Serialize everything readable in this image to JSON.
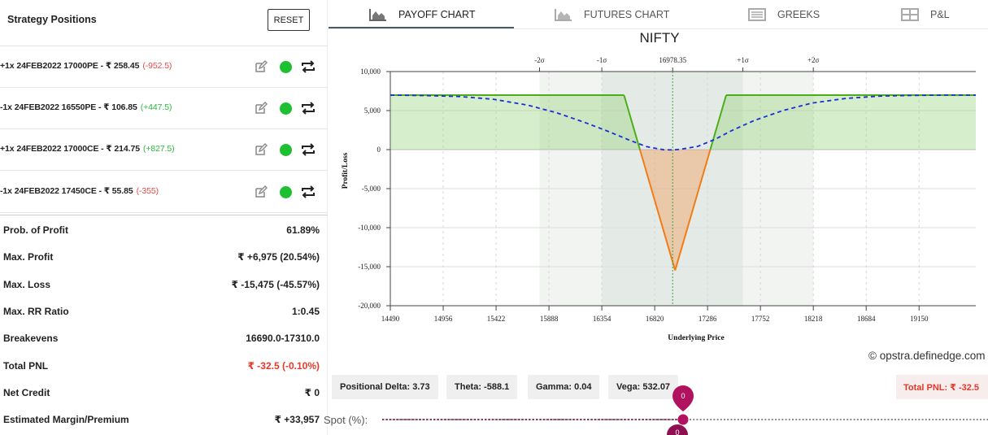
{
  "positions": {
    "title": "Strategy Positions",
    "reset_label": "RESET",
    "legs": [
      {
        "text": "+1x  24FEB2022  17000PE  - ₹ 258.45",
        "change": "(-952.5)",
        "change_class": "neg"
      },
      {
        "text": "-1x  24FEB2022  16550PE  - ₹ 106.85",
        "change": "(+447.5)",
        "change_class": "pos"
      },
      {
        "text": "+1x  24FEB2022  17000CE  - ₹ 214.75",
        "change": "(+827.5)",
        "change_class": "pos"
      },
      {
        "text": "-1x  24FEB2022  17450CE  - ₹ 55.85",
        "change": "(-355)",
        "change_class": "neg"
      }
    ]
  },
  "summary": [
    {
      "label": "Prob. of Profit",
      "value": "61.89%"
    },
    {
      "label": "Max. Profit",
      "value": "₹ +6,975 (20.54%)"
    },
    {
      "label": "Max. Loss",
      "value": "₹ -15,475 (-45.57%)"
    },
    {
      "label": "Max. RR Ratio",
      "value": "1:0.45"
    },
    {
      "label": "Breakevens",
      "value": "16690.0-17310.0"
    },
    {
      "label": "Total PNL",
      "value": "₹ -32.5 (-0.10%)",
      "highlight": true
    },
    {
      "label": "Net Credit",
      "value": "₹ 0"
    },
    {
      "label": "Estimated Margin/Premium",
      "value": "₹ +33,957"
    }
  ],
  "tabs": [
    {
      "label": "PAYOFF CHART",
      "icon": "area-chart-icon",
      "active": true
    },
    {
      "label": "FUTURES CHART",
      "icon": "area-chart-icon",
      "active": false
    },
    {
      "label": "GREEKS",
      "icon": "table-list-icon",
      "active": false
    },
    {
      "label": "P&L",
      "icon": "grid-icon",
      "active": false
    }
  ],
  "chart_data": {
    "type": "line",
    "title": "NIFTY",
    "xlabel": "Underlying Price",
    "ylabel": "Profit/Loss",
    "xlim": [
      14490,
      19650
    ],
    "ylim": [
      -20000,
      10000
    ],
    "x_ticks": [
      14490,
      14956,
      15422,
      15888,
      16354,
      16820,
      17286,
      17752,
      18218,
      18684,
      19150
    ],
    "y_ticks": [
      10000,
      5000,
      0,
      -5000,
      -10000,
      -15000,
      -20000
    ],
    "y_tick_labels": [
      "10,000",
      "5,000",
      "0",
      "-5,000",
      "-10,000",
      "-15,000",
      "-20,000"
    ],
    "top_ticks": [
      {
        "label": "-2σ",
        "x": 15805
      },
      {
        "label": "-1σ",
        "x": 16354
      },
      {
        "label": "16978.35",
        "x": 16978.35
      },
      {
        "label": "+1σ",
        "x": 17597
      },
      {
        "label": "+2σ",
        "x": 18218
      }
    ],
    "sigma_bands": {
      "outer": [
        15805,
        18218
      ],
      "inner": [
        16354,
        17597
      ]
    },
    "spot": 16978.35,
    "grid": true,
    "series": [
      {
        "kind": "expiry-payoff",
        "x": [
          14490,
          16550,
          17000,
          17450,
          19650
        ],
        "y": [
          6975,
          6975,
          -15475,
          6975,
          6975
        ],
        "color_profit": "#4caf1a",
        "color_loss": "#f07d18"
      },
      {
        "kind": "target-day",
        "x": [
          14490,
          14800,
          15100,
          15400,
          15700,
          15950,
          16200,
          16400,
          16600,
          16750,
          16900,
          16978,
          17050,
          17200,
          17350,
          17500,
          17700,
          17950,
          18200,
          18500,
          18800,
          19100,
          19400,
          19650
        ],
        "y": [
          6975,
          6930,
          6800,
          6450,
          5700,
          4750,
          3500,
          2400,
          1200,
          380,
          -20,
          -40,
          40,
          420,
          1300,
          2450,
          3750,
          5000,
          5950,
          6550,
          6850,
          6950,
          6975,
          6975
        ],
        "color": "#1a2fd6"
      }
    ]
  },
  "watermark": "© opstra.definedge.com",
  "greeks": [
    {
      "label": "Positional Delta: 3.73"
    },
    {
      "label": "Theta: -588.1"
    },
    {
      "label": "Gamma: 0.04"
    },
    {
      "label": "Vega: 532.07"
    }
  ],
  "total_pnl_badge": "Total PNL: ₹ -32.5",
  "slider": {
    "label": "Spot (%):",
    "value": "0",
    "value2": "0"
  },
  "colors": {
    "accent": "#4a5a69",
    "slider_thumb": "#b0125f",
    "loss": "#e6392b",
    "profit": "#2db83d"
  }
}
